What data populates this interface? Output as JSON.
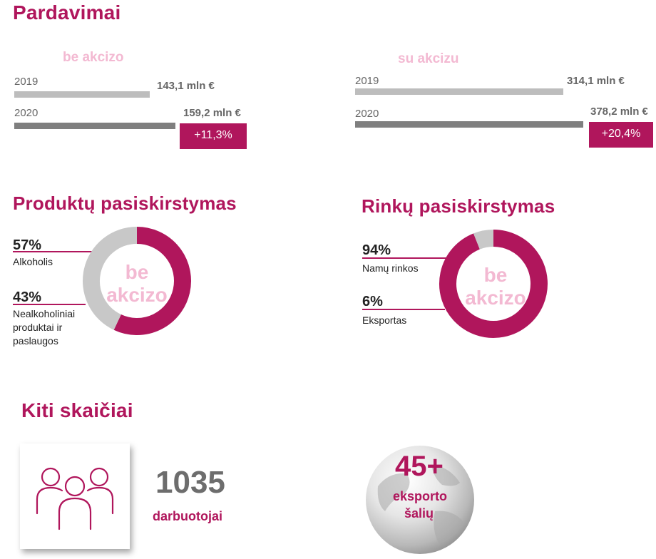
{
  "colors": {
    "accent": "#b0165c",
    "accent_light": "#f3b9d2",
    "bar_2019": "#bdbdbd",
    "bar_2020": "#7f7f7f",
    "donut_gray": "#c8c8c8"
  },
  "sections": {
    "sales_title": "Pardavimai",
    "products_title": "Produktų pasiskirstymas",
    "markets_title": "Rinkų pasiskirstymas",
    "other_title": "Kiti skaičiai"
  },
  "sales_left": {
    "subtitle": "be akcizo",
    "year1": "2019",
    "value1": "143,1 mln €",
    "year2": "2020",
    "value2": "159,2 mln €",
    "growth": "+11,3%"
  },
  "sales_right": {
    "subtitle": "su akcizu",
    "year1": "2019",
    "value1": "314,1 mln €",
    "year2": "2020",
    "value2": "378,2 mln €",
    "growth": "+20,4%"
  },
  "products": {
    "center_line1": "be",
    "center_line2": "akcizo",
    "p1": "57%",
    "l1": "Alkoholis",
    "p2": "43%",
    "l2a": "Nealkoholiniai",
    "l2b": "produktai ir",
    "l2c": "paslaugos"
  },
  "markets": {
    "center_line1": "be",
    "center_line2": "akcizo",
    "p1": "94%",
    "l1": "Namų rinkos",
    "p2": "6%",
    "l2": "Eksportas"
  },
  "other": {
    "employees_number": "1035",
    "employees_label": "darbuotojai",
    "people_icon": "people-group-icon",
    "countries_number": "45+",
    "countries_label1": "eksporto",
    "countries_label2": "šalių",
    "globe_icon": "globe-icon"
  },
  "chart_data": [
    {
      "type": "bar",
      "title": "be akcizo",
      "categories": [
        "2019",
        "2020"
      ],
      "values": [
        143.1,
        159.2
      ],
      "unit": "mln €",
      "growth": "+11,3%"
    },
    {
      "type": "bar",
      "title": "su akcizu",
      "categories": [
        "2019",
        "2020"
      ],
      "values": [
        314.1,
        378.2
      ],
      "unit": "mln €",
      "growth": "+20,4%"
    },
    {
      "type": "pie",
      "title": "Produktų pasiskirstymas",
      "categories": [
        "Alkoholis",
        "Nealkoholiniai produktai ir paslaugos"
      ],
      "values": [
        57,
        43
      ],
      "colors": [
        "#b0165c",
        "#c8c8c8"
      ]
    },
    {
      "type": "pie",
      "title": "Rinkų pasiskirstymas",
      "categories": [
        "Namų rinkos",
        "Eksportas"
      ],
      "values": [
        94,
        6
      ],
      "colors": [
        "#b0165c",
        "#c8c8c8"
      ]
    }
  ]
}
